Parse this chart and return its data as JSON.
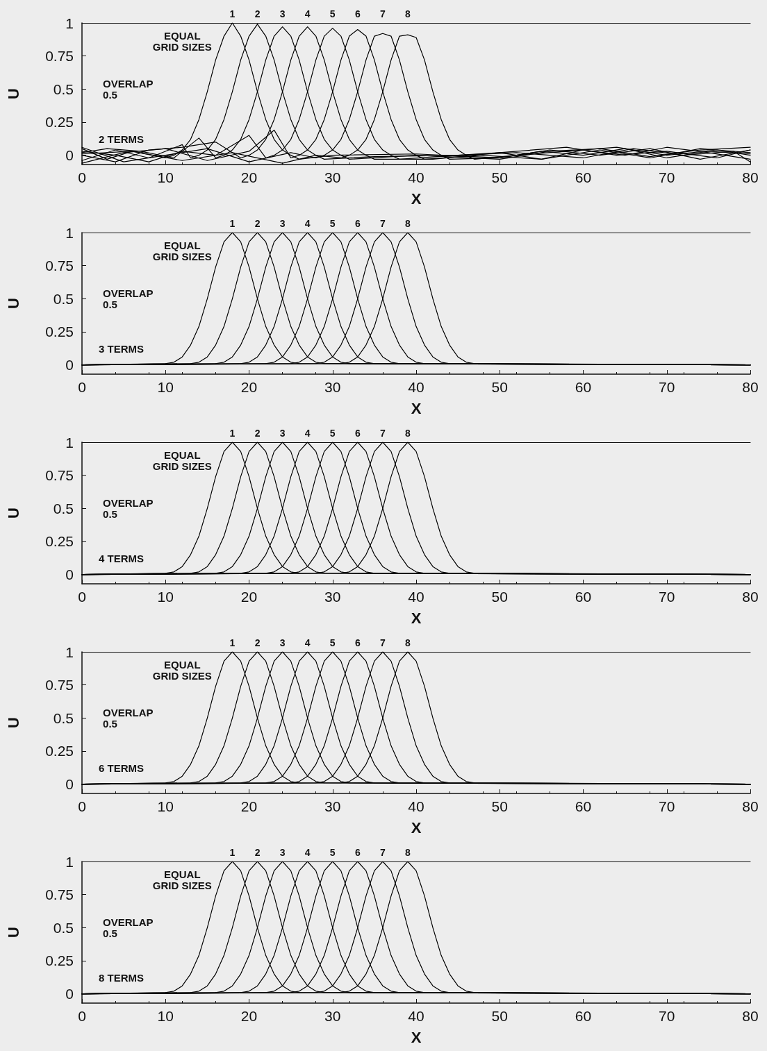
{
  "chart_data": [
    {
      "type": "line",
      "xlabel": "X",
      "ylabel": "U",
      "xlim": [
        0,
        80
      ],
      "xticks": [
        0,
        10,
        20,
        30,
        40,
        50,
        60,
        70,
        80
      ],
      "ylim": [
        -0.07,
        1
      ],
      "yticks": [
        0,
        0.25,
        0.5,
        0.75,
        1
      ],
      "marker": "none",
      "line_style": "solid",
      "annotations": [
        "EQUAL\nGRID SIZES",
        "OVERLAP\n0.5",
        "2 TERMS"
      ],
      "series": [
        {
          "name": "1",
          "color": "#000000",
          "x": [
            0,
            3,
            6,
            10,
            11,
            12,
            13,
            14,
            15,
            16,
            17,
            18,
            19,
            20,
            21,
            22,
            23,
            24,
            25,
            26,
            30,
            40,
            50,
            55,
            60,
            65,
            70,
            75,
            80
          ],
          "values": [
            0.05,
            -0.03,
            0.03,
            -0.02,
            0,
            0.04,
            0.12,
            0.27,
            0.48,
            0.72,
            0.9,
            1,
            0.9,
            0.72,
            0.48,
            0.27,
            0.12,
            0.04,
            0,
            -0.03,
            0,
            0.01,
            -0.02,
            0.03,
            0,
            0.05,
            -0.02,
            0.03,
            0.01
          ]
        },
        {
          "name": "2",
          "color": "#000000",
          "x": [
            0,
            4,
            8,
            12,
            13,
            14,
            15,
            16,
            17,
            18,
            19,
            20,
            21,
            22,
            23,
            24,
            25,
            26,
            27,
            28,
            29,
            35,
            45,
            50,
            55,
            60,
            65,
            70,
            75,
            80
          ],
          "values": [
            -0.04,
            0.04,
            -0.02,
            0.08,
            -0.02,
            0,
            0.04,
            0.12,
            0.27,
            0.48,
            0.72,
            0.9,
            0.99,
            0.9,
            0.72,
            0.48,
            0.27,
            0.12,
            0.04,
            0,
            -0.03,
            -0.01,
            0,
            0.02,
            -0.03,
            0.04,
            0,
            0.06,
            0.02,
            -0.03
          ]
        },
        {
          "name": "3",
          "color": "#000000",
          "x": [
            0,
            3,
            7,
            11,
            14,
            16,
            17,
            18,
            19,
            20,
            21,
            22,
            23,
            24,
            25,
            26,
            27,
            28,
            29,
            30,
            31,
            32,
            40,
            50,
            56,
            62,
            68,
            74,
            80
          ],
          "values": [
            0.02,
            0.05,
            0.03,
            -0.02,
            0.13,
            -0.02,
            0,
            0.04,
            0.12,
            0.27,
            0.48,
            0.72,
            0.9,
            0.97,
            0.9,
            0.72,
            0.48,
            0.27,
            0.12,
            0.04,
            0,
            -0.03,
            0,
            -0.03,
            0.03,
            0.05,
            -0.01,
            0.04,
            0.06
          ]
        },
        {
          "name": "4",
          "color": "#000000",
          "x": [
            0,
            4,
            8,
            12,
            16,
            19,
            20,
            21,
            22,
            23,
            24,
            25,
            26,
            27,
            28,
            29,
            30,
            31,
            32,
            33,
            34,
            35,
            42,
            50,
            58,
            64,
            70,
            76,
            80
          ],
          "values": [
            0,
            -0.05,
            0.04,
            0.06,
            0.1,
            -0.02,
            0,
            0.04,
            0.12,
            0.27,
            0.48,
            0.72,
            0.9,
            0.97,
            0.9,
            0.72,
            0.48,
            0.27,
            0.12,
            0.04,
            0,
            -0.03,
            -0.03,
            0.02,
            0.06,
            0,
            0.03,
            -0.02,
            0.04
          ]
        },
        {
          "name": "5",
          "color": "#000000",
          "x": [
            0,
            4,
            8,
            12,
            16,
            20,
            22,
            23,
            24,
            25,
            26,
            27,
            28,
            29,
            30,
            31,
            32,
            33,
            34,
            35,
            36,
            37,
            38,
            45,
            52,
            60,
            66,
            72,
            78,
            80
          ],
          "values": [
            0.03,
            0,
            -0.05,
            0.03,
            0,
            0.15,
            -0.02,
            0,
            0.04,
            0.12,
            0.27,
            0.48,
            0.72,
            0.9,
            0.96,
            0.9,
            0.72,
            0.48,
            0.27,
            0.12,
            0.04,
            0,
            -0.03,
            0,
            0.02,
            -0.02,
            0.05,
            0,
            0.03,
            -0.05
          ]
        },
        {
          "name": "6",
          "color": "#000000",
          "x": [
            0,
            5,
            10,
            15,
            20,
            23,
            25,
            26,
            27,
            28,
            29,
            30,
            31,
            32,
            33,
            34,
            35,
            36,
            37,
            38,
            39,
            40,
            41,
            48,
            55,
            62,
            68,
            74,
            80
          ],
          "values": [
            -0.06,
            0.02,
            0.05,
            -0.04,
            0.03,
            0.19,
            -0.02,
            0,
            0.04,
            0.12,
            0.27,
            0.48,
            0.72,
            0.9,
            0.95,
            0.9,
            0.72,
            0.48,
            0.27,
            0.12,
            0.04,
            0,
            -0.03,
            0,
            -0.03,
            0.04,
            -0.02,
            0.05,
            0.02
          ]
        },
        {
          "name": "7",
          "color": "#000000",
          "x": [
            0,
            5,
            10,
            15,
            20,
            25,
            28,
            29,
            30,
            31,
            32,
            33,
            34,
            35,
            36,
            37,
            38,
            39,
            40,
            41,
            42,
            43,
            44,
            50,
            56,
            62,
            68,
            74,
            80
          ],
          "values": [
            0.06,
            -0.05,
            0,
            0.05,
            -0.05,
            0.02,
            -0.02,
            0,
            0.04,
            0.12,
            0.27,
            0.48,
            0.72,
            0.9,
            0.92,
            0.9,
            0.72,
            0.48,
            0.27,
            0.12,
            0.04,
            0,
            -0.03,
            -0.02,
            0.04,
            0,
            0.05,
            -0.03,
            0.04
          ]
        },
        {
          "name": "8",
          "color": "#000000",
          "x": [
            0,
            6,
            12,
            18,
            24,
            28,
            31,
            32,
            33,
            34,
            35,
            36,
            37,
            38,
            39,
            40,
            41,
            42,
            43,
            44,
            45,
            46,
            47,
            52,
            58,
            64,
            70,
            76,
            80
          ],
          "values": [
            0.01,
            0.03,
            -0.04,
            0.02,
            -0.06,
            0,
            -0.02,
            0,
            0.04,
            0.12,
            0.27,
            0.48,
            0.72,
            0.9,
            0.91,
            0.89,
            0.72,
            0.48,
            0.27,
            0.12,
            0.04,
            0,
            -0.03,
            0,
            0.03,
            0.06,
            0,
            0.04,
            0
          ]
        }
      ]
    },
    {
      "type": "line",
      "xlabel": "X",
      "ylabel": "U",
      "xlim": [
        0,
        80
      ],
      "xticks": [
        0,
        10,
        20,
        30,
        40,
        50,
        60,
        70,
        80
      ],
      "ylim": [
        -0.07,
        1
      ],
      "yticks": [
        0,
        0.25,
        0.5,
        0.75,
        1
      ],
      "marker": "none",
      "line_style": "solid",
      "annotations": [
        "EQUAL\nGRID SIZES",
        "OVERLAP\n0.5",
        "3 TERMS"
      ],
      "series": [
        {
          "name": "1",
          "color": "#000000",
          "x": [
            0,
            10,
            11,
            12,
            13,
            14,
            15,
            16,
            17,
            18,
            19,
            20,
            21,
            22,
            23,
            24,
            25,
            26,
            80
          ],
          "values": [
            0,
            0.01,
            0.02,
            0.06,
            0.15,
            0.29,
            0.5,
            0.74,
            0.93,
            1,
            0.93,
            0.74,
            0.5,
            0.29,
            0.15,
            0.06,
            0.02,
            0.01,
            0
          ]
        },
        {
          "name": "2",
          "color": "#000000",
          "x": [
            0,
            13,
            14,
            15,
            16,
            17,
            18,
            19,
            20,
            21,
            22,
            23,
            24,
            25,
            26,
            27,
            28,
            29,
            80
          ],
          "values": [
            0,
            0.01,
            0.02,
            0.06,
            0.15,
            0.29,
            0.5,
            0.74,
            0.93,
            1,
            0.93,
            0.74,
            0.5,
            0.29,
            0.15,
            0.06,
            0.02,
            0.01,
            0
          ]
        },
        {
          "name": "3",
          "color": "#000000",
          "x": [
            0,
            16,
            17,
            18,
            19,
            20,
            21,
            22,
            23,
            24,
            25,
            26,
            27,
            28,
            29,
            30,
            31,
            32,
            80
          ],
          "values": [
            0,
            0.01,
            0.02,
            0.06,
            0.15,
            0.29,
            0.5,
            0.74,
            0.93,
            1,
            0.93,
            0.74,
            0.5,
            0.29,
            0.15,
            0.06,
            0.02,
            0.01,
            0
          ]
        },
        {
          "name": "4",
          "color": "#000000",
          "x": [
            0,
            19,
            20,
            21,
            22,
            23,
            24,
            25,
            26,
            27,
            28,
            29,
            30,
            31,
            32,
            33,
            34,
            35,
            80
          ],
          "values": [
            0,
            0.01,
            0.02,
            0.06,
            0.15,
            0.29,
            0.5,
            0.74,
            0.93,
            1,
            0.93,
            0.74,
            0.5,
            0.29,
            0.15,
            0.06,
            0.02,
            0.01,
            0
          ]
        },
        {
          "name": "5",
          "color": "#000000",
          "x": [
            0,
            22,
            23,
            24,
            25,
            26,
            27,
            28,
            29,
            30,
            31,
            32,
            33,
            34,
            35,
            36,
            37,
            38,
            80
          ],
          "values": [
            0,
            0.01,
            0.02,
            0.06,
            0.15,
            0.29,
            0.5,
            0.74,
            0.93,
            1,
            0.93,
            0.74,
            0.5,
            0.29,
            0.15,
            0.06,
            0.02,
            0.01,
            0
          ]
        },
        {
          "name": "6",
          "color": "#000000",
          "x": [
            0,
            25,
            26,
            27,
            28,
            29,
            30,
            31,
            32,
            33,
            34,
            35,
            36,
            37,
            38,
            39,
            40,
            41,
            80
          ],
          "values": [
            0,
            0.01,
            0.02,
            0.06,
            0.15,
            0.29,
            0.5,
            0.74,
            0.93,
            1,
            0.93,
            0.74,
            0.5,
            0.29,
            0.15,
            0.06,
            0.02,
            0.01,
            0
          ]
        },
        {
          "name": "7",
          "color": "#000000",
          "x": [
            0,
            28,
            29,
            30,
            31,
            32,
            33,
            34,
            35,
            36,
            37,
            38,
            39,
            40,
            41,
            42,
            43,
            44,
            80
          ],
          "values": [
            0,
            0.01,
            0.02,
            0.06,
            0.15,
            0.29,
            0.5,
            0.74,
            0.93,
            1,
            0.93,
            0.74,
            0.5,
            0.29,
            0.15,
            0.06,
            0.02,
            0.01,
            0
          ]
        },
        {
          "name": "8",
          "color": "#000000",
          "x": [
            0,
            31,
            32,
            33,
            34,
            35,
            36,
            37,
            38,
            39,
            40,
            41,
            42,
            43,
            44,
            45,
            46,
            47,
            80
          ],
          "values": [
            0,
            0.01,
            0.02,
            0.06,
            0.15,
            0.29,
            0.5,
            0.74,
            0.93,
            1,
            0.93,
            0.74,
            0.5,
            0.29,
            0.15,
            0.06,
            0.02,
            0.01,
            0
          ]
        }
      ]
    },
    {
      "type": "line",
      "xlabel": "X",
      "ylabel": "U",
      "xlim": [
        0,
        80
      ],
      "xticks": [
        0,
        10,
        20,
        30,
        40,
        50,
        60,
        70,
        80
      ],
      "ylim": [
        -0.07,
        1
      ],
      "yticks": [
        0,
        0.25,
        0.5,
        0.75,
        1
      ],
      "marker": "none",
      "line_style": "solid",
      "annotations": [
        "EQUAL\nGRID SIZES",
        "OVERLAP\n0.5",
        "4 TERMS"
      ],
      "series": [
        {
          "name": "1",
          "color": "#000000",
          "x": [
            0,
            10,
            11,
            12,
            13,
            14,
            15,
            16,
            17,
            18,
            19,
            20,
            21,
            22,
            23,
            24,
            25,
            26,
            80
          ],
          "values": [
            0,
            0.01,
            0.02,
            0.06,
            0.15,
            0.29,
            0.5,
            0.74,
            0.93,
            1,
            0.93,
            0.74,
            0.5,
            0.29,
            0.15,
            0.06,
            0.02,
            0.01,
            0
          ]
        },
        {
          "name": "2",
          "color": "#000000",
          "x": [
            0,
            13,
            14,
            15,
            16,
            17,
            18,
            19,
            20,
            21,
            22,
            23,
            24,
            25,
            26,
            27,
            28,
            29,
            80
          ],
          "values": [
            0,
            0.01,
            0.02,
            0.06,
            0.15,
            0.29,
            0.5,
            0.74,
            0.93,
            1,
            0.93,
            0.74,
            0.5,
            0.29,
            0.15,
            0.06,
            0.02,
            0.01,
            0
          ]
        },
        {
          "name": "3",
          "color": "#000000",
          "x": [
            0,
            16,
            17,
            18,
            19,
            20,
            21,
            22,
            23,
            24,
            25,
            26,
            27,
            28,
            29,
            30,
            31,
            32,
            80
          ],
          "values": [
            0,
            0.01,
            0.02,
            0.06,
            0.15,
            0.29,
            0.5,
            0.74,
            0.93,
            1,
            0.93,
            0.74,
            0.5,
            0.29,
            0.15,
            0.06,
            0.02,
            0.01,
            0
          ]
        },
        {
          "name": "4",
          "color": "#000000",
          "x": [
            0,
            19,
            20,
            21,
            22,
            23,
            24,
            25,
            26,
            27,
            28,
            29,
            30,
            31,
            32,
            33,
            34,
            35,
            80
          ],
          "values": [
            0,
            0.01,
            0.02,
            0.06,
            0.15,
            0.29,
            0.5,
            0.74,
            0.93,
            1,
            0.93,
            0.74,
            0.5,
            0.29,
            0.15,
            0.06,
            0.02,
            0.01,
            0
          ]
        },
        {
          "name": "5",
          "color": "#000000",
          "x": [
            0,
            22,
            23,
            24,
            25,
            26,
            27,
            28,
            29,
            30,
            31,
            32,
            33,
            34,
            35,
            36,
            37,
            38,
            80
          ],
          "values": [
            0,
            0.01,
            0.02,
            0.06,
            0.15,
            0.29,
            0.5,
            0.74,
            0.93,
            1,
            0.93,
            0.74,
            0.5,
            0.29,
            0.15,
            0.06,
            0.02,
            0.01,
            0
          ]
        },
        {
          "name": "6",
          "color": "#000000",
          "x": [
            0,
            25,
            26,
            27,
            28,
            29,
            30,
            31,
            32,
            33,
            34,
            35,
            36,
            37,
            38,
            39,
            40,
            41,
            80
          ],
          "values": [
            0,
            0.01,
            0.02,
            0.06,
            0.15,
            0.29,
            0.5,
            0.74,
            0.93,
            1,
            0.93,
            0.74,
            0.5,
            0.29,
            0.15,
            0.06,
            0.02,
            0.01,
            0
          ]
        },
        {
          "name": "7",
          "color": "#000000",
          "x": [
            0,
            28,
            29,
            30,
            31,
            32,
            33,
            34,
            35,
            36,
            37,
            38,
            39,
            40,
            41,
            42,
            43,
            44,
            80
          ],
          "values": [
            0,
            0.01,
            0.02,
            0.06,
            0.15,
            0.29,
            0.5,
            0.74,
            0.93,
            1,
            0.93,
            0.74,
            0.5,
            0.29,
            0.15,
            0.06,
            0.02,
            0.01,
            0
          ]
        },
        {
          "name": "8",
          "color": "#000000",
          "x": [
            0,
            31,
            32,
            33,
            34,
            35,
            36,
            37,
            38,
            39,
            40,
            41,
            42,
            43,
            44,
            45,
            46,
            47,
            80
          ],
          "values": [
            0,
            0.01,
            0.02,
            0.06,
            0.15,
            0.29,
            0.5,
            0.74,
            0.93,
            1,
            0.93,
            0.74,
            0.5,
            0.29,
            0.15,
            0.06,
            0.02,
            0.01,
            0
          ]
        }
      ]
    },
    {
      "type": "line",
      "xlabel": "X",
      "ylabel": "U",
      "xlim": [
        0,
        80
      ],
      "xticks": [
        0,
        10,
        20,
        30,
        40,
        50,
        60,
        70,
        80
      ],
      "ylim": [
        -0.07,
        1
      ],
      "yticks": [
        0,
        0.25,
        0.5,
        0.75,
        1
      ],
      "marker": "none",
      "line_style": "solid",
      "annotations": [
        "EQUAL\nGRID SIZES",
        "OVERLAP\n0.5",
        "6 TERMS"
      ],
      "series": [
        {
          "name": "1",
          "color": "#000000",
          "x": [
            0,
            10,
            11,
            12,
            13,
            14,
            15,
            16,
            17,
            18,
            19,
            20,
            21,
            22,
            23,
            24,
            25,
            26,
            80
          ],
          "values": [
            0,
            0.01,
            0.02,
            0.06,
            0.15,
            0.29,
            0.5,
            0.74,
            0.93,
            1,
            0.93,
            0.74,
            0.5,
            0.29,
            0.15,
            0.06,
            0.02,
            0.01,
            0
          ]
        },
        {
          "name": "2",
          "color": "#000000",
          "x": [
            0,
            13,
            14,
            15,
            16,
            17,
            18,
            19,
            20,
            21,
            22,
            23,
            24,
            25,
            26,
            27,
            28,
            29,
            80
          ],
          "values": [
            0,
            0.01,
            0.02,
            0.06,
            0.15,
            0.29,
            0.5,
            0.74,
            0.93,
            1,
            0.93,
            0.74,
            0.5,
            0.29,
            0.15,
            0.06,
            0.02,
            0.01,
            0
          ]
        },
        {
          "name": "3",
          "color": "#000000",
          "x": [
            0,
            16,
            17,
            18,
            19,
            20,
            21,
            22,
            23,
            24,
            25,
            26,
            27,
            28,
            29,
            30,
            31,
            32,
            80
          ],
          "values": [
            0,
            0.01,
            0.02,
            0.06,
            0.15,
            0.29,
            0.5,
            0.74,
            0.93,
            1,
            0.93,
            0.74,
            0.5,
            0.29,
            0.15,
            0.06,
            0.02,
            0.01,
            0
          ]
        },
        {
          "name": "4",
          "color": "#000000",
          "x": [
            0,
            19,
            20,
            21,
            22,
            23,
            24,
            25,
            26,
            27,
            28,
            29,
            30,
            31,
            32,
            33,
            34,
            35,
            80
          ],
          "values": [
            0,
            0.01,
            0.02,
            0.06,
            0.15,
            0.29,
            0.5,
            0.74,
            0.93,
            1,
            0.93,
            0.74,
            0.5,
            0.29,
            0.15,
            0.06,
            0.02,
            0.01,
            0
          ]
        },
        {
          "name": "5",
          "color": "#000000",
          "x": [
            0,
            22,
            23,
            24,
            25,
            26,
            27,
            28,
            29,
            30,
            31,
            32,
            33,
            34,
            35,
            36,
            37,
            38,
            80
          ],
          "values": [
            0,
            0.01,
            0.02,
            0.06,
            0.15,
            0.29,
            0.5,
            0.74,
            0.93,
            1,
            0.93,
            0.74,
            0.5,
            0.29,
            0.15,
            0.06,
            0.02,
            0.01,
            0
          ]
        },
        {
          "name": "6",
          "color": "#000000",
          "x": [
            0,
            25,
            26,
            27,
            28,
            29,
            30,
            31,
            32,
            33,
            34,
            35,
            36,
            37,
            38,
            39,
            40,
            41,
            80
          ],
          "values": [
            0,
            0.01,
            0.02,
            0.06,
            0.15,
            0.29,
            0.5,
            0.74,
            0.93,
            1,
            0.93,
            0.74,
            0.5,
            0.29,
            0.15,
            0.06,
            0.02,
            0.01,
            0
          ]
        },
        {
          "name": "7",
          "color": "#000000",
          "x": [
            0,
            28,
            29,
            30,
            31,
            32,
            33,
            34,
            35,
            36,
            37,
            38,
            39,
            40,
            41,
            42,
            43,
            44,
            80
          ],
          "values": [
            0,
            0.01,
            0.02,
            0.06,
            0.15,
            0.29,
            0.5,
            0.74,
            0.93,
            1,
            0.93,
            0.74,
            0.5,
            0.29,
            0.15,
            0.06,
            0.02,
            0.01,
            0
          ]
        },
        {
          "name": "8",
          "color": "#000000",
          "x": [
            0,
            31,
            32,
            33,
            34,
            35,
            36,
            37,
            38,
            39,
            40,
            41,
            42,
            43,
            44,
            45,
            46,
            47,
            80
          ],
          "values": [
            0,
            0.01,
            0.02,
            0.06,
            0.15,
            0.29,
            0.5,
            0.74,
            0.93,
            1,
            0.93,
            0.74,
            0.5,
            0.29,
            0.15,
            0.06,
            0.02,
            0.01,
            0
          ]
        }
      ]
    },
    {
      "type": "line",
      "xlabel": "X",
      "ylabel": "U",
      "xlim": [
        0,
        80
      ],
      "xticks": [
        0,
        10,
        20,
        30,
        40,
        50,
        60,
        70,
        80
      ],
      "ylim": [
        -0.07,
        1
      ],
      "yticks": [
        0,
        0.25,
        0.5,
        0.75,
        1
      ],
      "marker": "none",
      "line_style": "solid",
      "annotations": [
        "EQUAL\nGRID SIZES",
        "OVERLAP\n0.5",
        "8 TERMS"
      ],
      "series": [
        {
          "name": "1",
          "color": "#000000",
          "x": [
            0,
            10,
            11,
            12,
            13,
            14,
            15,
            16,
            17,
            18,
            19,
            20,
            21,
            22,
            23,
            24,
            25,
            26,
            80
          ],
          "values": [
            0,
            0.01,
            0.02,
            0.06,
            0.15,
            0.29,
            0.5,
            0.74,
            0.93,
            1,
            0.93,
            0.74,
            0.5,
            0.29,
            0.15,
            0.06,
            0.02,
            0.01,
            0
          ]
        },
        {
          "name": "2",
          "color": "#000000",
          "x": [
            0,
            13,
            14,
            15,
            16,
            17,
            18,
            19,
            20,
            21,
            22,
            23,
            24,
            25,
            26,
            27,
            28,
            29,
            80
          ],
          "values": [
            0,
            0.01,
            0.02,
            0.06,
            0.15,
            0.29,
            0.5,
            0.74,
            0.93,
            1,
            0.93,
            0.74,
            0.5,
            0.29,
            0.15,
            0.06,
            0.02,
            0.01,
            0
          ]
        },
        {
          "name": "3",
          "color": "#000000",
          "x": [
            0,
            16,
            17,
            18,
            19,
            20,
            21,
            22,
            23,
            24,
            25,
            26,
            27,
            28,
            29,
            30,
            31,
            32,
            80
          ],
          "values": [
            0,
            0.01,
            0.02,
            0.06,
            0.15,
            0.29,
            0.5,
            0.74,
            0.93,
            1,
            0.93,
            0.74,
            0.5,
            0.29,
            0.15,
            0.06,
            0.02,
            0.01,
            0
          ]
        },
        {
          "name": "4",
          "color": "#000000",
          "x": [
            0,
            19,
            20,
            21,
            22,
            23,
            24,
            25,
            26,
            27,
            28,
            29,
            30,
            31,
            32,
            33,
            34,
            35,
            80
          ],
          "values": [
            0,
            0.01,
            0.02,
            0.06,
            0.15,
            0.29,
            0.5,
            0.74,
            0.93,
            1,
            0.93,
            0.74,
            0.5,
            0.29,
            0.15,
            0.06,
            0.02,
            0.01,
            0
          ]
        },
        {
          "name": "5",
          "color": "#000000",
          "x": [
            0,
            22,
            23,
            24,
            25,
            26,
            27,
            28,
            29,
            30,
            31,
            32,
            33,
            34,
            35,
            36,
            37,
            38,
            80
          ],
          "values": [
            0,
            0.01,
            0.02,
            0.06,
            0.15,
            0.29,
            0.5,
            0.74,
            0.93,
            1,
            0.93,
            0.74,
            0.5,
            0.29,
            0.15,
            0.06,
            0.02,
            0.01,
            0
          ]
        },
        {
          "name": "6",
          "color": "#000000",
          "x": [
            0,
            25,
            26,
            27,
            28,
            29,
            30,
            31,
            32,
            33,
            34,
            35,
            36,
            37,
            38,
            39,
            40,
            41,
            80
          ],
          "values": [
            0,
            0.01,
            0.02,
            0.06,
            0.15,
            0.29,
            0.5,
            0.74,
            0.93,
            1,
            0.93,
            0.74,
            0.5,
            0.29,
            0.15,
            0.06,
            0.02,
            0.01,
            0
          ]
        },
        {
          "name": "7",
          "color": "#000000",
          "x": [
            0,
            28,
            29,
            30,
            31,
            32,
            33,
            34,
            35,
            36,
            37,
            38,
            39,
            40,
            41,
            42,
            43,
            44,
            80
          ],
          "values": [
            0,
            0.01,
            0.02,
            0.06,
            0.15,
            0.29,
            0.5,
            0.74,
            0.93,
            1,
            0.93,
            0.74,
            0.5,
            0.29,
            0.15,
            0.06,
            0.02,
            0.01,
            0
          ]
        },
        {
          "name": "8",
          "color": "#000000",
          "x": [
            0,
            31,
            32,
            33,
            34,
            35,
            36,
            37,
            38,
            39,
            40,
            41,
            42,
            43,
            44,
            45,
            46,
            47,
            80
          ],
          "values": [
            0,
            0.01,
            0.02,
            0.06,
            0.15,
            0.29,
            0.5,
            0.74,
            0.93,
            1,
            0.93,
            0.74,
            0.5,
            0.29,
            0.15,
            0.06,
            0.02,
            0.01,
            0
          ]
        }
      ]
    }
  ]
}
